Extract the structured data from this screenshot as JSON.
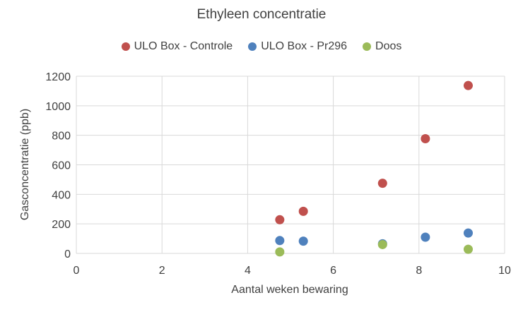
{
  "chart_data": {
    "type": "scatter",
    "title": "Ethyleen concentratie",
    "xlabel": "Aantal weken bewaring",
    "ylabel": "Gasconcentratie (ppb)",
    "xlim": [
      0,
      10
    ],
    "ylim": [
      0,
      1200
    ],
    "xticks": [
      0,
      2,
      4,
      6,
      8,
      10
    ],
    "yticks": [
      0,
      200,
      400,
      600,
      800,
      1000,
      1200
    ],
    "grid": true,
    "legend_position": "top",
    "series": [
      {
        "name": "ULO Box - Controle",
        "color": "#c0504d",
        "points": [
          {
            "x": 4.75,
            "y": 228
          },
          {
            "x": 5.3,
            "y": 285
          },
          {
            "x": 7.15,
            "y": 475
          },
          {
            "x": 8.15,
            "y": 777
          },
          {
            "x": 9.15,
            "y": 1137
          }
        ]
      },
      {
        "name": "ULO Box - Pr296",
        "color": "#4f81bd",
        "points": [
          {
            "x": 4.75,
            "y": 87
          },
          {
            "x": 5.3,
            "y": 83
          },
          {
            "x": 7.15,
            "y": 65
          },
          {
            "x": 8.15,
            "y": 110
          },
          {
            "x": 9.15,
            "y": 138
          }
        ]
      },
      {
        "name": "Doos",
        "color": "#9bbb59",
        "points": [
          {
            "x": 4.75,
            "y": 10
          },
          {
            "x": 7.15,
            "y": 60
          },
          {
            "x": 9.15,
            "y": 28
          }
        ]
      }
    ]
  }
}
